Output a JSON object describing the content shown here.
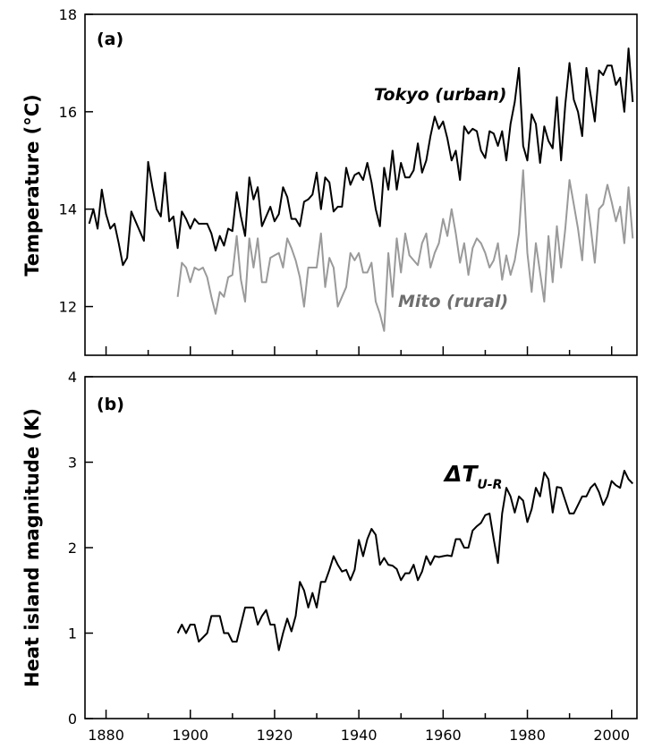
{
  "chart_data": [
    {
      "type": "line",
      "panel_label": "(a)",
      "ylabel": "Temperature (°C)",
      "xlabel": "",
      "xlim": [
        1875,
        2006
      ],
      "ylim": [
        11,
        18
      ],
      "xticks": [
        1880,
        1900,
        1920,
        1940,
        1960,
        1980,
        2000
      ],
      "yticks": [
        12,
        14,
        16,
        18
      ],
      "grid": false,
      "colors": {
        "Tokyo": "#000000",
        "Mito": "#9a9a9a"
      },
      "series": [
        {
          "name": "Tokyo (urban)",
          "x": [
            1876,
            1877,
            1878,
            1879,
            1880,
            1881,
            1882,
            1883,
            1884,
            1885,
            1886,
            1887,
            1888,
            1889,
            1890,
            1891,
            1892,
            1893,
            1894,
            1895,
            1896,
            1897,
            1898,
            1899,
            1900,
            1901,
            1902,
            1903,
            1904,
            1905,
            1906,
            1907,
            1908,
            1909,
            1910,
            1911,
            1912,
            1913,
            1914,
            1915,
            1916,
            1917,
            1918,
            1919,
            1920,
            1921,
            1922,
            1923,
            1924,
            1925,
            1926,
            1927,
            1928,
            1929,
            1930,
            1931,
            1932,
            1933,
            1934,
            1935,
            1936,
            1937,
            1938,
            1939,
            1940,
            1941,
            1942,
            1943,
            1944,
            1945,
            1946,
            1947,
            1948,
            1949,
            1950,
            1951,
            1952,
            1953,
            1954,
            1955,
            1956,
            1957,
            1958,
            1959,
            1960,
            1961,
            1962,
            1963,
            1964,
            1965,
            1966,
            1967,
            1968,
            1969,
            1970,
            1971,
            1972,
            1973,
            1974,
            1975,
            1976,
            1977,
            1978,
            1979,
            1980,
            1981,
            1982,
            1983,
            1984,
            1985,
            1986,
            1987,
            1988,
            1989,
            1990,
            1991,
            1992,
            1993,
            1994,
            1995,
            1996,
            1997,
            1998,
            1999,
            2000,
            2001,
            2002,
            2003,
            2004,
            2005
          ],
          "values": [
            13.7,
            14.0,
            13.6,
            14.4,
            13.9,
            13.6,
            13.7,
            13.3,
            12.85,
            13.0,
            13.95,
            13.75,
            13.55,
            13.35,
            14.97,
            14.45,
            14.0,
            13.85,
            14.75,
            13.75,
            13.85,
            13.2,
            13.95,
            13.8,
            13.6,
            13.8,
            13.7,
            13.7,
            13.7,
            13.5,
            13.15,
            13.45,
            13.25,
            13.6,
            13.55,
            14.35,
            13.85,
            13.45,
            14.65,
            14.2,
            14.45,
            13.65,
            13.85,
            14.05,
            13.75,
            13.9,
            14.45,
            14.25,
            13.8,
            13.8,
            13.65,
            14.15,
            14.2,
            14.3,
            14.75,
            14.0,
            14.65,
            14.55,
            13.95,
            14.05,
            14.05,
            14.85,
            14.5,
            14.7,
            14.75,
            14.6,
            14.95,
            14.55,
            14.0,
            13.65,
            14.85,
            14.4,
            15.2,
            14.4,
            14.95,
            14.65,
            14.65,
            14.8,
            15.35,
            14.75,
            15.0,
            15.5,
            15.9,
            15.65,
            15.8,
            15.45,
            15.0,
            15.2,
            14.6,
            15.7,
            15.55,
            15.65,
            15.6,
            15.2,
            15.05,
            15.6,
            15.55,
            15.3,
            15.6,
            15.0,
            15.75,
            16.2,
            16.9,
            15.3,
            15.0,
            15.95,
            15.75,
            14.95,
            15.7,
            15.4,
            15.25,
            16.3,
            15.0,
            16.15,
            17.0,
            16.25,
            16.0,
            15.5,
            16.9,
            16.35,
            15.8,
            16.85,
            16.75,
            16.95,
            16.95,
            16.55,
            16.7,
            16.0,
            17.3,
            16.2
          ]
        },
        {
          "name": "Mito (rural)",
          "x": [
            1897,
            1898,
            1899,
            1900,
            1901,
            1902,
            1903,
            1904,
            1905,
            1906,
            1907,
            1908,
            1909,
            1910,
            1911,
            1912,
            1913,
            1914,
            1915,
            1916,
            1917,
            1918,
            1919,
            1920,
            1921,
            1922,
            1923,
            1924,
            1925,
            1926,
            1927,
            1928,
            1929,
            1930,
            1931,
            1932,
            1933,
            1934,
            1935,
            1936,
            1937,
            1938,
            1939,
            1940,
            1941,
            1942,
            1943,
            1944,
            1945,
            1946,
            1947,
            1948,
            1949,
            1950,
            1951,
            1952,
            1953,
            1954,
            1955,
            1956,
            1957,
            1958,
            1959,
            1960,
            1961,
            1962,
            1963,
            1964,
            1965,
            1966,
            1967,
            1968,
            1969,
            1970,
            1971,
            1972,
            1973,
            1974,
            1975,
            1976,
            1977,
            1978,
            1979,
            1980,
            1981,
            1982,
            1983,
            1984,
            1985,
            1986,
            1987,
            1988,
            1989,
            1990,
            1991,
            1992,
            1993,
            1994,
            1995,
            1996,
            1997,
            1998,
            1999,
            2000,
            2001,
            2002,
            2003,
            2004,
            2005
          ],
          "values": [
            12.2,
            12.9,
            12.8,
            12.5,
            12.8,
            12.75,
            12.8,
            12.6,
            12.2,
            11.85,
            12.3,
            12.2,
            12.6,
            12.65,
            13.45,
            12.55,
            12.1,
            13.4,
            12.8,
            13.4,
            12.5,
            12.5,
            13.0,
            13.05,
            13.1,
            12.8,
            13.4,
            13.2,
            12.95,
            12.6,
            12.0,
            12.8,
            12.8,
            12.8,
            13.5,
            12.4,
            13.0,
            12.8,
            12.0,
            12.2,
            12.4,
            13.1,
            12.95,
            13.1,
            12.7,
            12.7,
            12.9,
            12.1,
            11.85,
            11.5,
            13.1,
            12.2,
            13.4,
            12.7,
            13.5,
            13.05,
            12.95,
            12.85,
            13.3,
            13.5,
            12.8,
            13.1,
            13.3,
            13.8,
            13.45,
            14.0,
            13.5,
            12.9,
            13.3,
            12.65,
            13.2,
            13.4,
            13.3,
            13.1,
            12.8,
            12.95,
            13.3,
            12.55,
            13.05,
            12.65,
            12.95,
            13.5,
            14.8,
            13.1,
            12.3,
            13.3,
            12.7,
            12.1,
            13.45,
            12.5,
            13.65,
            12.8,
            13.6,
            14.6,
            14.1,
            13.6,
            12.95,
            14.3,
            13.65,
            12.9,
            14.0,
            14.1,
            14.5,
            14.15,
            13.75,
            14.05,
            13.3,
            14.45,
            13.4
          ]
        }
      ]
    },
    {
      "type": "line",
      "panel_label": "(b)",
      "ylabel": "Heat island magnitude (K)",
      "xlabel": "",
      "xlim": [
        1875,
        2006
      ],
      "ylim": [
        0,
        4
      ],
      "xticks": [
        1880,
        1900,
        1920,
        1940,
        1960,
        1980,
        2000
      ],
      "yticks": [
        0,
        1,
        2,
        3,
        4
      ],
      "grid": false,
      "colors": {
        "dT": "#000000"
      },
      "annotation": {
        "base": "ΔT",
        "sub": "U-R"
      },
      "series": [
        {
          "x": [
            1897,
            1898,
            1899,
            1900,
            1901,
            1902,
            1903,
            1904,
            1905,
            1906,
            1907,
            1908,
            1909,
            1910,
            1911,
            1912,
            1913,
            1914,
            1915,
            1916,
            1917,
            1918,
            1919,
            1920,
            1921,
            1922,
            1923,
            1924,
            1925,
            1926,
            1927,
            1928,
            1929,
            1930,
            1931,
            1932,
            1933,
            1934,
            1935,
            1936,
            1937,
            1938,
            1939,
            1940,
            1941,
            1942,
            1943,
            1944,
            1945,
            1946,
            1947,
            1948,
            1949,
            1950,
            1951,
            1952,
            1953,
            1954,
            1955,
            1956,
            1957,
            1958,
            1959,
            1960,
            1961,
            1962,
            1963,
            1964,
            1965,
            1966,
            1967,
            1968,
            1969,
            1970,
            1971,
            1972,
            1973,
            1974,
            1975,
            1976,
            1977,
            1978,
            1979,
            1980,
            1981,
            1982,
            1983,
            1984,
            1985,
            1986,
            1987,
            1988,
            1989,
            1990,
            1991,
            1992,
            1993,
            1994,
            1995,
            1996,
            1997,
            1998,
            1999,
            2000,
            2001,
            2002,
            2003,
            2004,
            2005
          ],
          "values": [
            1.0,
            1.1,
            1.0,
            1.1,
            1.1,
            0.9,
            0.95,
            1.0,
            1.2,
            1.2,
            1.2,
            1.0,
            1.0,
            0.9,
            0.9,
            1.1,
            1.3,
            1.3,
            1.3,
            1.1,
            1.2,
            1.27,
            1.1,
            1.1,
            0.8,
            1.0,
            1.17,
            1.02,
            1.2,
            1.6,
            1.5,
            1.3,
            1.47,
            1.3,
            1.6,
            1.6,
            1.74,
            1.9,
            1.8,
            1.72,
            1.74,
            1.62,
            1.74,
            2.09,
            1.9,
            2.1,
            2.22,
            2.15,
            1.8,
            1.88,
            1.8,
            1.79,
            1.75,
            1.62,
            1.7,
            1.7,
            1.8,
            1.62,
            1.72,
            1.9,
            1.8,
            1.9,
            1.89,
            1.9,
            1.91,
            1.9,
            2.1,
            2.1,
            2.0,
            2.0,
            2.2,
            2.25,
            2.29,
            2.38,
            2.4,
            2.1,
            1.82,
            2.4,
            2.7,
            2.6,
            2.41,
            2.6,
            2.55,
            2.3,
            2.45,
            2.7,
            2.6,
            2.88,
            2.8,
            2.41,
            2.71,
            2.7,
            2.55,
            2.4,
            2.4,
            2.5,
            2.6,
            2.6,
            2.7,
            2.75,
            2.65,
            2.5,
            2.6,
            2.78,
            2.73,
            2.7,
            2.9,
            2.8,
            2.75
          ]
        }
      ]
    }
  ]
}
